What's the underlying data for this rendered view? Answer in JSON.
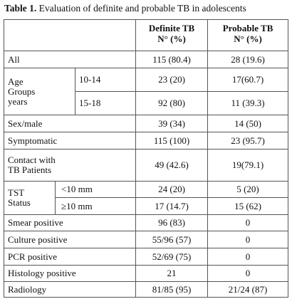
{
  "caption": {
    "label": "Table 1.",
    "text": "Evaluation of definite and probable TB in adolescents"
  },
  "table": {
    "columns": [
      [
        "Definite TB",
        "N° (%)"
      ],
      [
        "Probable TB",
        "N° (%)"
      ]
    ],
    "rows": [
      {
        "label": [
          "All"
        ],
        "definite": "115 (80.4)",
        "probable": "28 (19.6)"
      },
      {
        "label": [
          "Age",
          "Groups",
          "years"
        ],
        "subrows": [
          {
            "label": "10-14",
            "definite": "23 (20)",
            "probable": "17(60.7)"
          },
          {
            "label": "15-18",
            "definite": "92 (80)",
            "probable": "11 (39.3)"
          }
        ]
      },
      {
        "label": [
          "Sex/male"
        ],
        "definite": "39 (34)",
        "probable": "14 (50)"
      },
      {
        "label": [
          "Symptomatic"
        ],
        "definite": "115 (100)",
        "probable": "23 (95.7)"
      },
      {
        "label": [
          "Contact with",
          "TB Patients"
        ],
        "definite": "49 (42.6)",
        "probable": "19(79.1)"
      },
      {
        "label": [
          "TST",
          "Status"
        ],
        "subrows": [
          {
            "label": "<10 mm",
            "definite": "24 (20)",
            "probable": "5 (20)"
          },
          {
            "label": "≥10 mm",
            "definite": "17 (14.7)",
            "probable": "15 (62)"
          }
        ]
      },
      {
        "label": [
          "Smear positive"
        ],
        "definite": "96 (83)",
        "probable": "0"
      },
      {
        "label": [
          "Culture positive"
        ],
        "definite": "55/96 (57)",
        "probable": "0"
      },
      {
        "label": [
          "PCR positive"
        ],
        "definite": "52/69  (75)",
        "probable": "0"
      },
      {
        "label": [
          "Histology positive"
        ],
        "definite": "21",
        "probable": "0"
      },
      {
        "label": [
          "Radiology"
        ],
        "definite": "81/85 (95)",
        "probable": "21/24 (87)"
      }
    ]
  }
}
